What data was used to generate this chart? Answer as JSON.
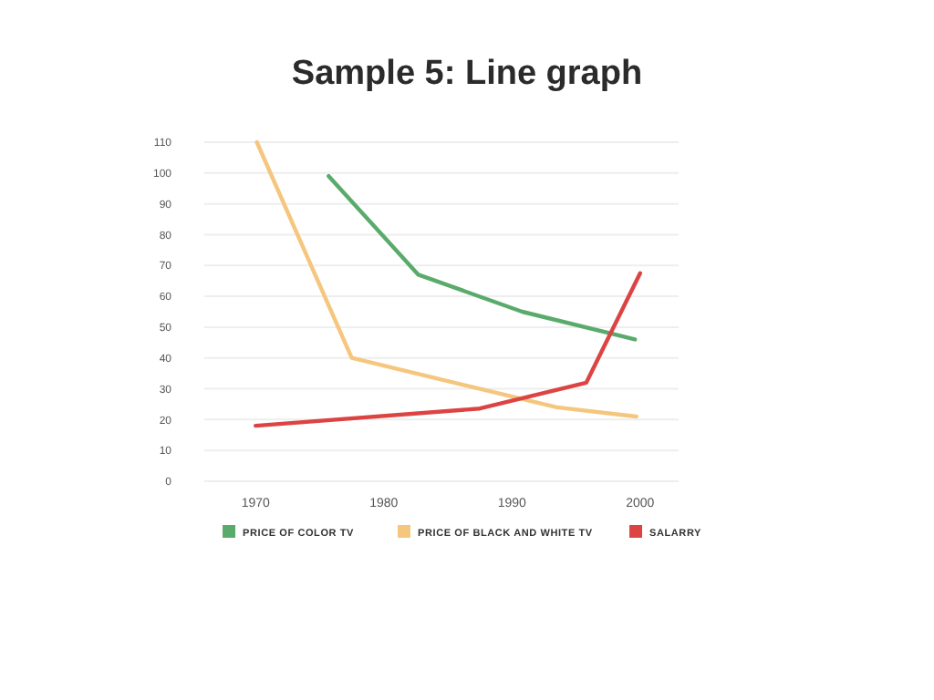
{
  "chart_data": {
    "type": "line",
    "title": "Sample 5: Line graph",
    "xlim": [
      1966,
      2003
    ],
    "xticks": [
      1970,
      1980,
      1990,
      2000
    ],
    "ylim": [
      0,
      110
    ],
    "yticks": [
      0,
      10,
      20,
      30,
      40,
      50,
      60,
      70,
      80,
      90,
      100,
      110
    ],
    "grid": "y",
    "legend": "bottom",
    "marker": "none",
    "line_style": "solid",
    "series": [
      {
        "name": "PRICE OF COLOR TV",
        "color": "#5aab6b",
        "x": [
          1975.7,
          1982.7,
          1990.8,
          1999.6
        ],
        "values": [
          99,
          67,
          55,
          46
        ]
      },
      {
        "name": "PRICE OF BLACK AND WHITE TV",
        "color": "#f5c67d",
        "x": [
          1970.1,
          1977.5,
          1993.5,
          1999.7
        ],
        "values": [
          110,
          40,
          24,
          21
        ]
      },
      {
        "name": "SALARRY",
        "color": "#dc4444",
        "x": [
          1970,
          1987.5,
          1995.8,
          2000
        ],
        "values": [
          18,
          23.6,
          32,
          67.5
        ]
      }
    ]
  }
}
